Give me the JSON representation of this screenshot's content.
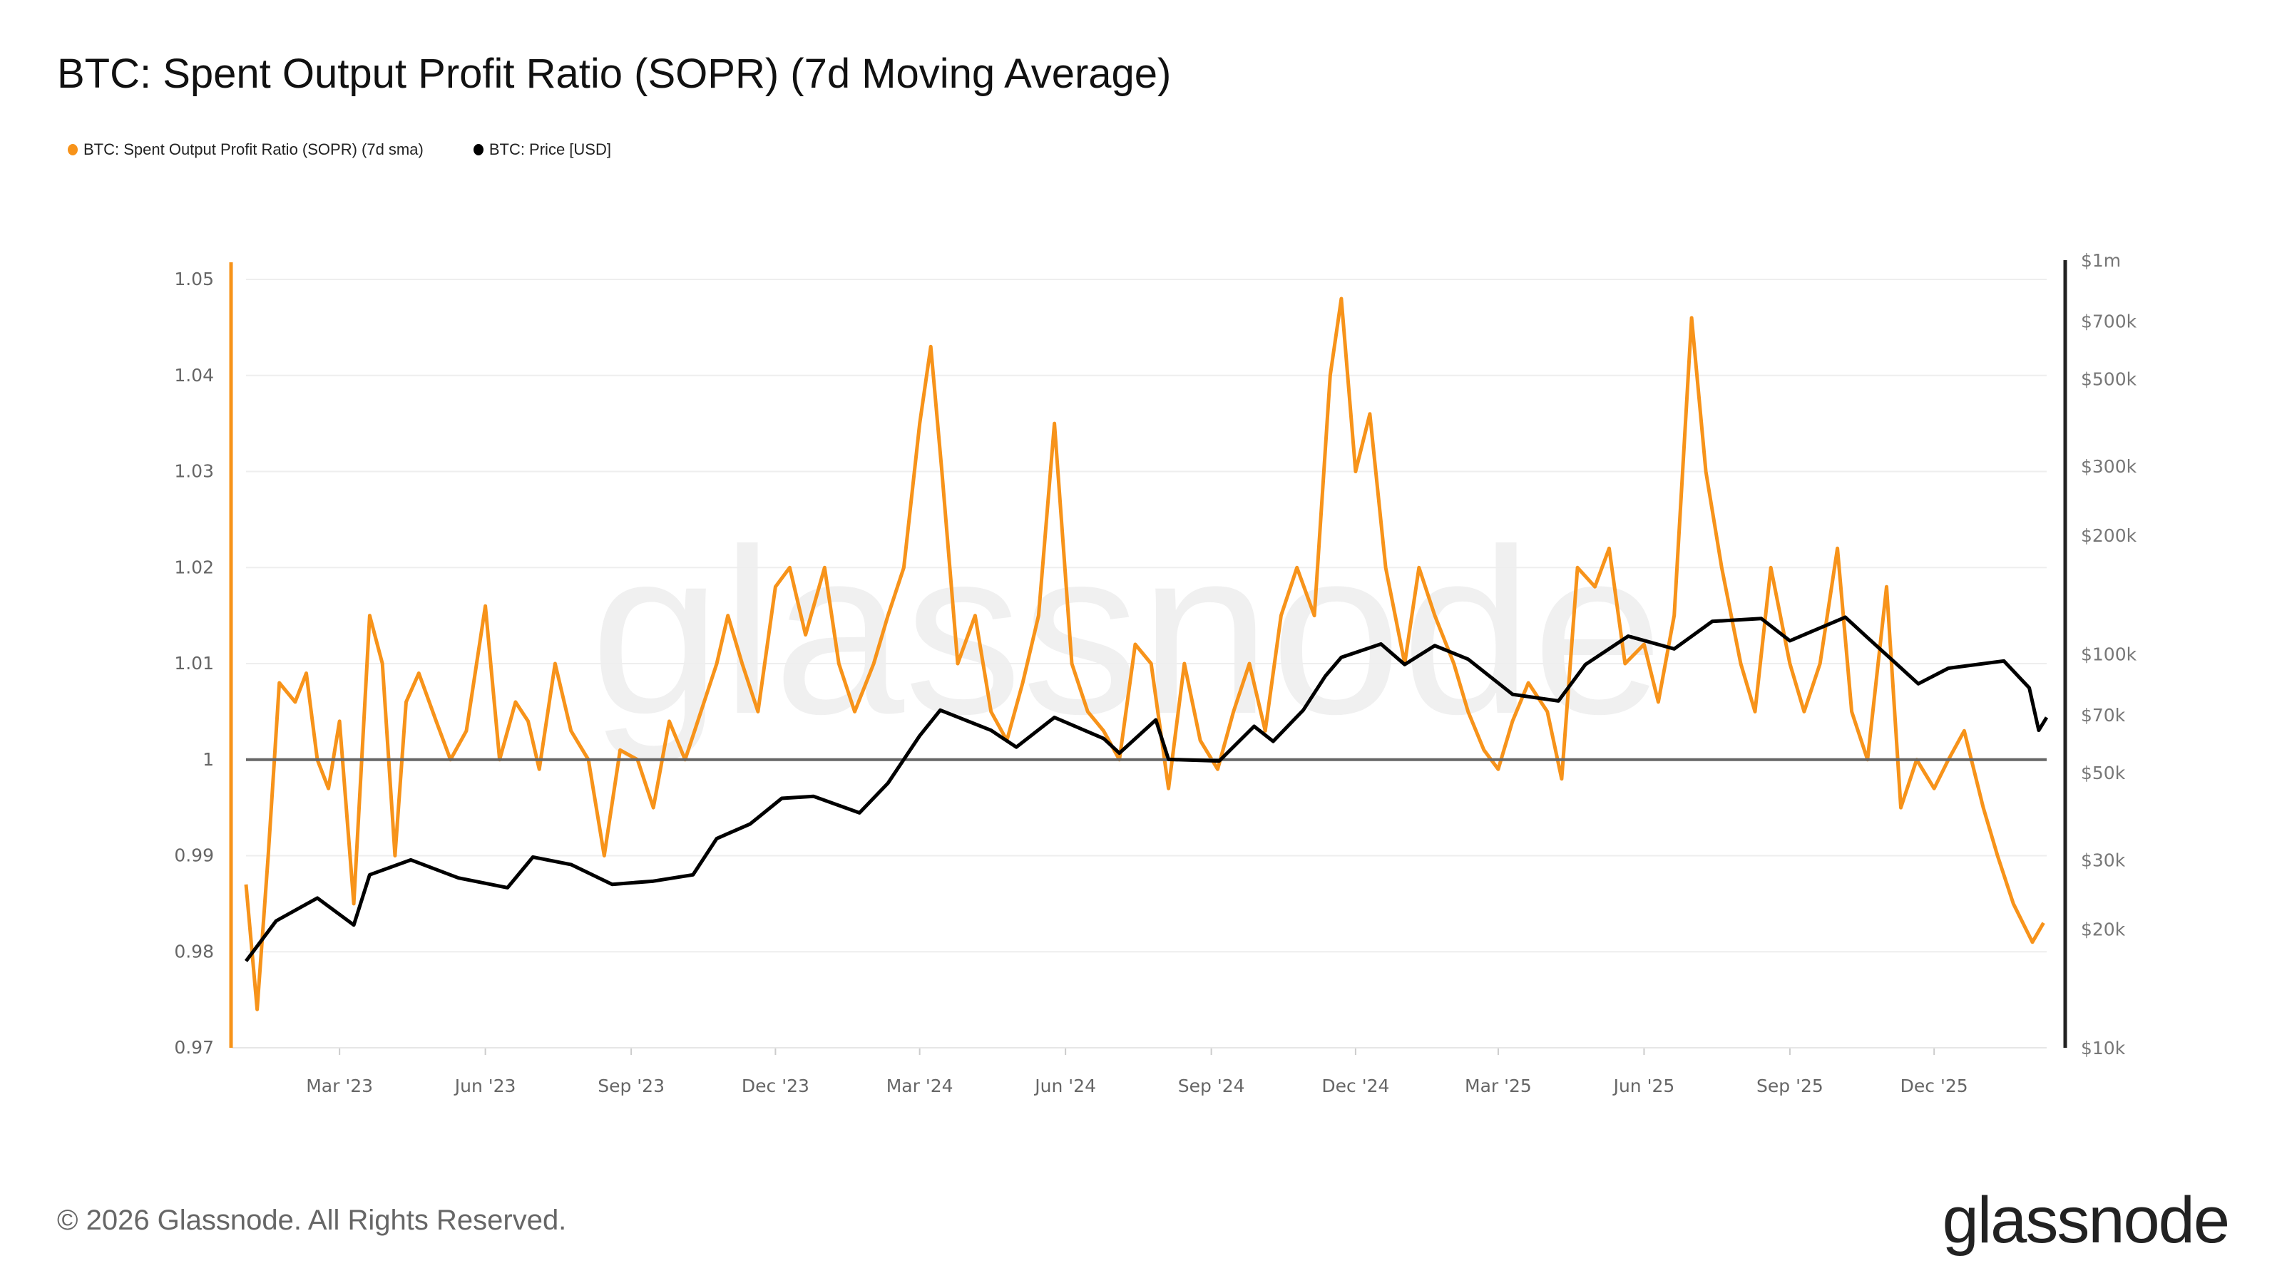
{
  "title": "BTC: Spent Output Profit Ratio (SOPR) (7d Moving Average)",
  "footer": "© 2026 Glassnode. All Rights Reserved.",
  "logo": "glassnode",
  "watermark": "glassnode",
  "chart_data": {
    "type": "line",
    "title": "BTC: Spent Output Profit Ratio (SOPR) (7d Moving Average)",
    "legend_position": "top-left",
    "grid": true,
    "x_ticks": [
      "Mar '23",
      "Jun '23",
      "Sep '23",
      "Dec '23",
      "Mar '24",
      "Jun '24",
      "Sep '24",
      "Dec '24",
      "Mar '25",
      "Jun '25",
      "Sep '25",
      "Dec '25"
    ],
    "x_tick_dates": [
      "2023-03-01",
      "2023-06-01",
      "2023-09-01",
      "2023-12-01",
      "2024-03-01",
      "2024-06-01",
      "2024-09-01",
      "2024-12-01",
      "2025-03-01",
      "2025-06-01",
      "2025-09-01",
      "2025-12-01"
    ],
    "xlim": [
      "2023-01-01",
      "2026-02-10"
    ],
    "y_left": {
      "ticks": [
        "0.97",
        "0.98",
        "0.99",
        "1",
        "1.01",
        "1.02",
        "1.03",
        "1.04",
        "1.05"
      ],
      "ylim": [
        0.97,
        1.05
      ],
      "reference_line": 1
    },
    "y_right": {
      "scale": "log",
      "ticks": [
        {
          "v": 10000,
          "label": "$10k"
        },
        {
          "v": 20000,
          "label": "$20k"
        },
        {
          "v": 30000,
          "label": "$30k"
        },
        {
          "v": 50000,
          "label": "$50k"
        },
        {
          "v": 70000,
          "label": "$70k"
        },
        {
          "v": 100000,
          "label": "$100k"
        },
        {
          "v": 200000,
          "label": "$200k"
        },
        {
          "v": 300000,
          "label": "$300k"
        },
        {
          "v": 500000,
          "label": "$500k"
        },
        {
          "v": 700000,
          "label": "$700k"
        },
        {
          "v": 1000000,
          "label": "$1m"
        }
      ],
      "ylim": [
        10000,
        1000000
      ]
    },
    "series": [
      {
        "name": "BTC: Spent Output Profit Ratio (SOPR) (7d sma)",
        "color": "#f7931a",
        "axis": "left",
        "points": [
          [
            "2023-01-01",
            0.987
          ],
          [
            "2023-01-08",
            0.974
          ],
          [
            "2023-01-15",
            0.99
          ],
          [
            "2023-01-22",
            1.008
          ],
          [
            "2023-02-01",
            1.006
          ],
          [
            "2023-02-08",
            1.009
          ],
          [
            "2023-02-15",
            1.0
          ],
          [
            "2023-02-22",
            0.997
          ],
          [
            "2023-03-01",
            1.004
          ],
          [
            "2023-03-10",
            0.985
          ],
          [
            "2023-03-20",
            1.015
          ],
          [
            "2023-03-28",
            1.01
          ],
          [
            "2023-04-05",
            0.99
          ],
          [
            "2023-04-12",
            1.006
          ],
          [
            "2023-04-20",
            1.009
          ],
          [
            "2023-05-01",
            1.004
          ],
          [
            "2023-05-10",
            1.0
          ],
          [
            "2023-05-20",
            1.003
          ],
          [
            "2023-06-01",
            1.016
          ],
          [
            "2023-06-10",
            1.0
          ],
          [
            "2023-06-20",
            1.006
          ],
          [
            "2023-06-28",
            1.004
          ],
          [
            "2023-07-05",
            0.999
          ],
          [
            "2023-07-15",
            1.01
          ],
          [
            "2023-07-25",
            1.003
          ],
          [
            "2023-08-05",
            1.0
          ],
          [
            "2023-08-15",
            0.99
          ],
          [
            "2023-08-25",
            1.001
          ],
          [
            "2023-09-05",
            1.0
          ],
          [
            "2023-09-15",
            0.995
          ],
          [
            "2023-09-25",
            1.004
          ],
          [
            "2023-10-05",
            1.0
          ],
          [
            "2023-10-15",
            1.005
          ],
          [
            "2023-10-25",
            1.01
          ],
          [
            "2023-11-01",
            1.015
          ],
          [
            "2023-11-10",
            1.01
          ],
          [
            "2023-11-20",
            1.005
          ],
          [
            "2023-12-01",
            1.018
          ],
          [
            "2023-12-10",
            1.02
          ],
          [
            "2023-12-20",
            1.013
          ],
          [
            "2024-01-01",
            1.02
          ],
          [
            "2024-01-10",
            1.01
          ],
          [
            "2024-01-20",
            1.005
          ],
          [
            "2024-02-01",
            1.01
          ],
          [
            "2024-02-10",
            1.015
          ],
          [
            "2024-02-20",
            1.02
          ],
          [
            "2024-03-01",
            1.035
          ],
          [
            "2024-03-08",
            1.043
          ],
          [
            "2024-03-15",
            1.03
          ],
          [
            "2024-03-25",
            1.01
          ],
          [
            "2024-04-05",
            1.015
          ],
          [
            "2024-04-15",
            1.005
          ],
          [
            "2024-04-25",
            1.002
          ],
          [
            "2024-05-05",
            1.008
          ],
          [
            "2024-05-15",
            1.015
          ],
          [
            "2024-05-25",
            1.035
          ],
          [
            "2024-06-05",
            1.01
          ],
          [
            "2024-06-15",
            1.005
          ],
          [
            "2024-06-25",
            1.003
          ],
          [
            "2024-07-05",
            1.0
          ],
          [
            "2024-07-15",
            1.012
          ],
          [
            "2024-07-25",
            1.01
          ],
          [
            "2024-08-05",
            0.997
          ],
          [
            "2024-08-15",
            1.01
          ],
          [
            "2024-08-25",
            1.002
          ],
          [
            "2024-09-05",
            0.999
          ],
          [
            "2024-09-15",
            1.005
          ],
          [
            "2024-09-25",
            1.01
          ],
          [
            "2024-10-05",
            1.003
          ],
          [
            "2024-10-15",
            1.015
          ],
          [
            "2024-10-25",
            1.02
          ],
          [
            "2024-11-05",
            1.015
          ],
          [
            "2024-11-15",
            1.04
          ],
          [
            "2024-11-22",
            1.048
          ],
          [
            "2024-12-01",
            1.03
          ],
          [
            "2024-12-10",
            1.036
          ],
          [
            "2024-12-20",
            1.02
          ],
          [
            "2025-01-01",
            1.01
          ],
          [
            "2025-01-10",
            1.02
          ],
          [
            "2025-01-20",
            1.015
          ],
          [
            "2025-02-01",
            1.01
          ],
          [
            "2025-02-10",
            1.005
          ],
          [
            "2025-02-20",
            1.001
          ],
          [
            "2025-03-01",
            0.999
          ],
          [
            "2025-03-10",
            1.004
          ],
          [
            "2025-03-20",
            1.008
          ],
          [
            "2025-04-01",
            1.005
          ],
          [
            "2025-04-10",
            0.998
          ],
          [
            "2025-04-20",
            1.02
          ],
          [
            "2025-05-01",
            1.018
          ],
          [
            "2025-05-10",
            1.022
          ],
          [
            "2025-05-20",
            1.01
          ],
          [
            "2025-06-01",
            1.012
          ],
          [
            "2025-06-10",
            1.006
          ],
          [
            "2025-06-20",
            1.015
          ],
          [
            "2025-07-01",
            1.046
          ],
          [
            "2025-07-10",
            1.03
          ],
          [
            "2025-07-20",
            1.02
          ],
          [
            "2025-08-01",
            1.01
          ],
          [
            "2025-08-10",
            1.005
          ],
          [
            "2025-08-20",
            1.02
          ],
          [
            "2025-09-01",
            1.01
          ],
          [
            "2025-09-10",
            1.005
          ],
          [
            "2025-09-20",
            1.01
          ],
          [
            "2025-10-01",
            1.022
          ],
          [
            "2025-10-10",
            1.005
          ],
          [
            "2025-10-20",
            1.0
          ],
          [
            "2025-11-01",
            1.018
          ],
          [
            "2025-11-10",
            0.995
          ],
          [
            "2025-11-20",
            1.0
          ],
          [
            "2025-12-01",
            0.997
          ],
          [
            "2025-12-10",
            1.0
          ],
          [
            "2025-12-20",
            1.003
          ],
          [
            "2026-01-01",
            0.995
          ],
          [
            "2026-01-10",
            0.99
          ],
          [
            "2026-01-20",
            0.985
          ],
          [
            "2026-02-01",
            0.981
          ],
          [
            "2026-02-08",
            0.983
          ]
        ]
      },
      {
        "name": "BTC: Price [USD]",
        "color": "#000000",
        "axis": "right",
        "points": [
          [
            "2023-01-01",
            16600
          ],
          [
            "2023-01-20",
            21000
          ],
          [
            "2023-02-15",
            24000
          ],
          [
            "2023-03-10",
            20500
          ],
          [
            "2023-03-20",
            27500
          ],
          [
            "2023-04-15",
            30000
          ],
          [
            "2023-05-15",
            27000
          ],
          [
            "2023-06-15",
            25500
          ],
          [
            "2023-07-01",
            30500
          ],
          [
            "2023-07-25",
            29200
          ],
          [
            "2023-08-20",
            26000
          ],
          [
            "2023-09-15",
            26500
          ],
          [
            "2023-10-10",
            27500
          ],
          [
            "2023-10-25",
            34000
          ],
          [
            "2023-11-15",
            37000
          ],
          [
            "2023-12-05",
            43000
          ],
          [
            "2023-12-25",
            43500
          ],
          [
            "2024-01-23",
            39500
          ],
          [
            "2024-02-10",
            47000
          ],
          [
            "2024-03-01",
            62000
          ],
          [
            "2024-03-14",
            72000
          ],
          [
            "2024-04-15",
            64000
          ],
          [
            "2024-05-01",
            58000
          ],
          [
            "2024-05-25",
            69000
          ],
          [
            "2024-06-25",
            61000
          ],
          [
            "2024-07-05",
            56000
          ],
          [
            "2024-07-28",
            68000
          ],
          [
            "2024-08-05",
            54000
          ],
          [
            "2024-09-06",
            53500
          ],
          [
            "2024-09-28",
            65500
          ],
          [
            "2024-10-10",
            60000
          ],
          [
            "2024-10-29",
            72000
          ],
          [
            "2024-11-12",
            88000
          ],
          [
            "2024-11-22",
            98000
          ],
          [
            "2024-12-17",
            106000
          ],
          [
            "2025-01-01",
            94000
          ],
          [
            "2025-01-20",
            105000
          ],
          [
            "2025-02-10",
            97000
          ],
          [
            "2025-03-10",
            79000
          ],
          [
            "2025-04-08",
            76000
          ],
          [
            "2025-04-25",
            94000
          ],
          [
            "2025-05-22",
            111000
          ],
          [
            "2025-06-20",
            103000
          ],
          [
            "2025-07-14",
            121000
          ],
          [
            "2025-08-14",
            123000
          ],
          [
            "2025-09-01",
            108000
          ],
          [
            "2025-10-06",
            124000
          ],
          [
            "2025-10-20",
            110000
          ],
          [
            "2025-11-21",
            84000
          ],
          [
            "2025-12-10",
            92000
          ],
          [
            "2026-01-14",
            96000
          ],
          [
            "2026-01-30",
            82000
          ],
          [
            "2026-02-05",
            64000
          ],
          [
            "2026-02-10",
            69000
          ]
        ]
      }
    ]
  }
}
